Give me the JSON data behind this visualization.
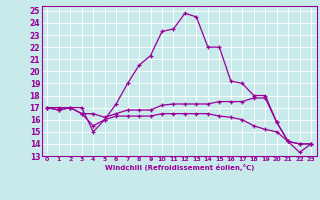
{
  "bg_color": "#c8eaea",
  "grid_color": "#ffffff",
  "line_color": "#990099",
  "xlim": [
    -0.5,
    23.5
  ],
  "ylim": [
    13,
    25.4
  ],
  "xticks": [
    0,
    1,
    2,
    3,
    4,
    5,
    6,
    7,
    8,
    9,
    10,
    11,
    12,
    13,
    14,
    15,
    16,
    17,
    18,
    19,
    20,
    21,
    22,
    23
  ],
  "yticks": [
    13,
    14,
    15,
    16,
    17,
    18,
    19,
    20,
    21,
    22,
    23,
    24,
    25
  ],
  "xlabel": "Windchill (Refroidissement éolien,°C)",
  "series": [
    [
      17.0,
      17.0,
      17.0,
      17.0,
      15.0,
      16.0,
      17.3,
      19.0,
      20.5,
      21.3,
      23.3,
      23.5,
      24.8,
      24.5,
      22.0,
      22.0,
      19.2,
      19.0,
      18.0,
      18.0,
      15.8,
      14.2,
      14.0,
      14.0
    ],
    [
      17.0,
      16.8,
      17.0,
      16.5,
      16.5,
      16.2,
      16.5,
      16.8,
      16.8,
      16.8,
      17.2,
      17.3,
      17.3,
      17.3,
      17.3,
      17.5,
      17.5,
      17.5,
      17.8,
      17.8,
      15.8,
      14.2,
      14.0,
      14.0
    ],
    [
      17.0,
      16.8,
      17.0,
      16.5,
      15.5,
      16.0,
      16.3,
      16.3,
      16.3,
      16.3,
      16.5,
      16.5,
      16.5,
      16.5,
      16.5,
      16.3,
      16.2,
      16.0,
      15.5,
      15.2,
      15.0,
      14.2,
      13.3,
      14.0
    ]
  ]
}
